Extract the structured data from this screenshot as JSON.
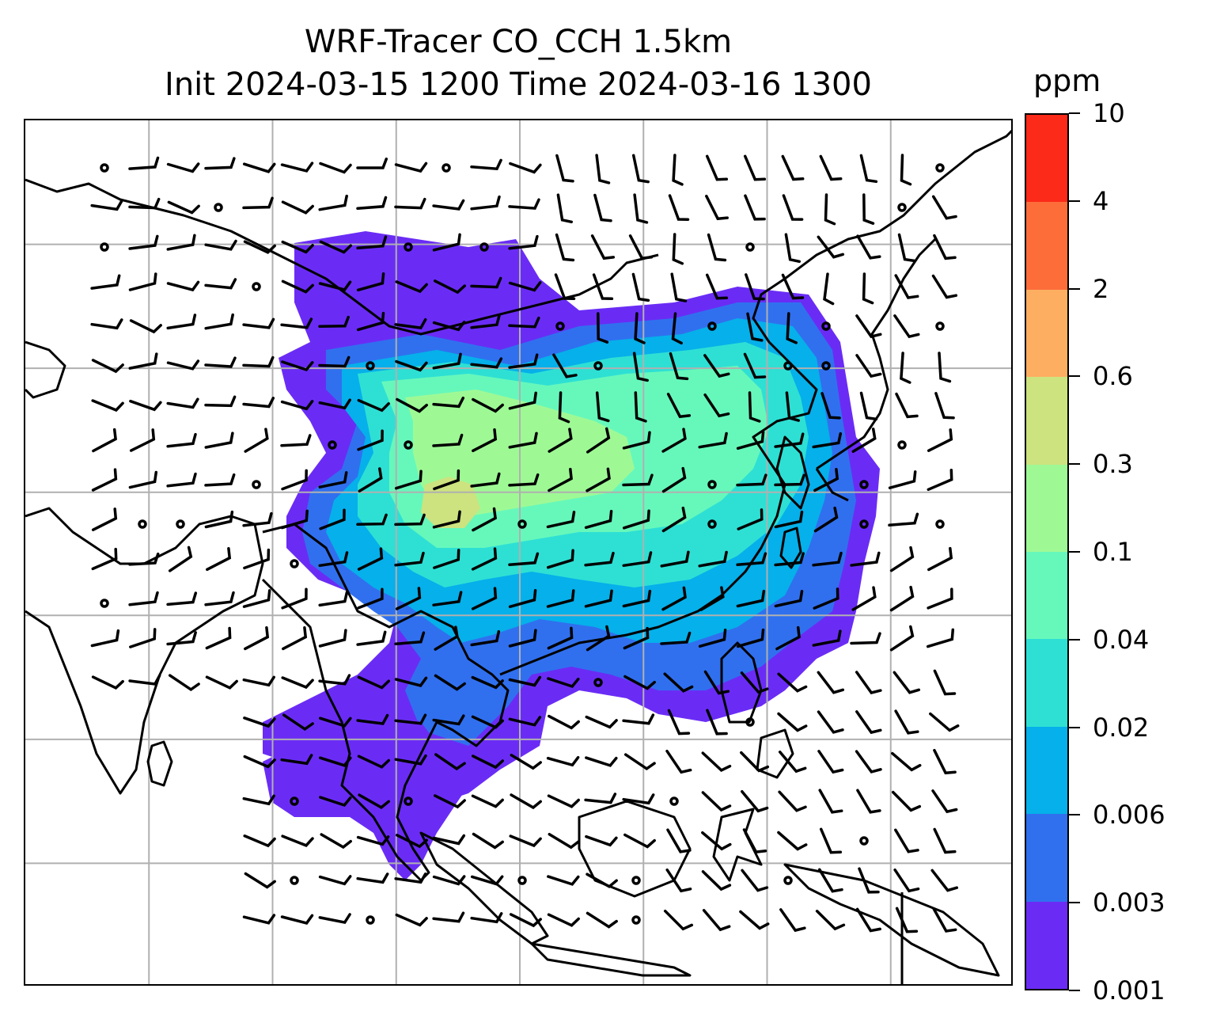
{
  "header": {
    "title_line1": "WRF-Tracer CO_CCH 1.5km",
    "title_line2": "Init 2024-03-15 1200 Time 2024-03-16 1300"
  },
  "colorbar": {
    "unit": "ppm",
    "levels": [
      "0.001",
      "0.003",
      "0.006",
      "0.02",
      "0.04",
      "0.1",
      "0.3",
      "0.6",
      "2",
      "4",
      "10"
    ],
    "colors": [
      "#6a2cf5",
      "#3070ef",
      "#06b0ea",
      "#2ee0d4",
      "#66f8bb",
      "#9ef995",
      "#cce37f",
      "#fdae61",
      "#fc6d3a",
      "#fc2a18"
    ]
  },
  "map": {
    "grid": true,
    "gridlines_x_fraction": [
      0.125,
      0.25,
      0.375,
      0.5,
      0.625,
      0.75,
      0.875
    ],
    "gridlines_y_fraction": [
      0.143,
      0.286,
      0.429,
      0.571,
      0.714,
      0.857
    ],
    "overlay": "wind-barbs",
    "coastline_color": "#000000"
  }
}
